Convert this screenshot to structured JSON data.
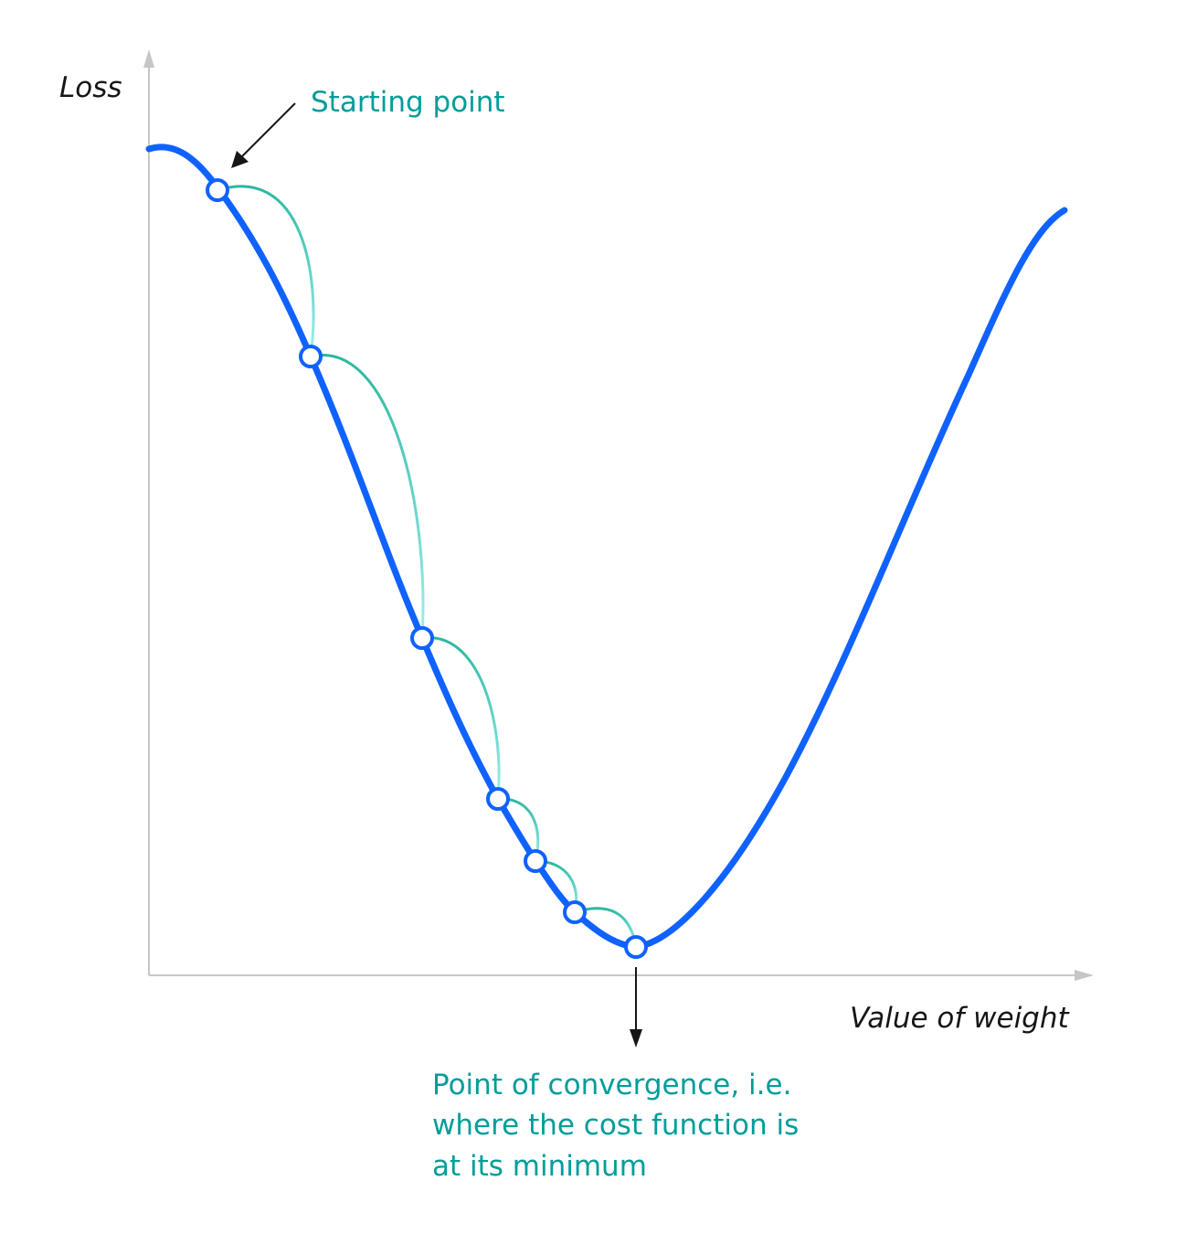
{
  "axes": {
    "y_label": "Loss",
    "x_label": "Value of weight"
  },
  "annotations": {
    "start": "Starting point",
    "convergence_lines": [
      "Point of convergence, i.e.",
      "where the cost function is",
      "at its minimum"
    ]
  },
  "colors": {
    "curve": "#0f62fe",
    "step_arc_start": "#2bb7a0",
    "step_arc_end": "#9ef0f0",
    "annotation_text": "#009d9a",
    "axis": "#c6c6c6",
    "pointer": "#161616"
  },
  "steps_count": 7
}
